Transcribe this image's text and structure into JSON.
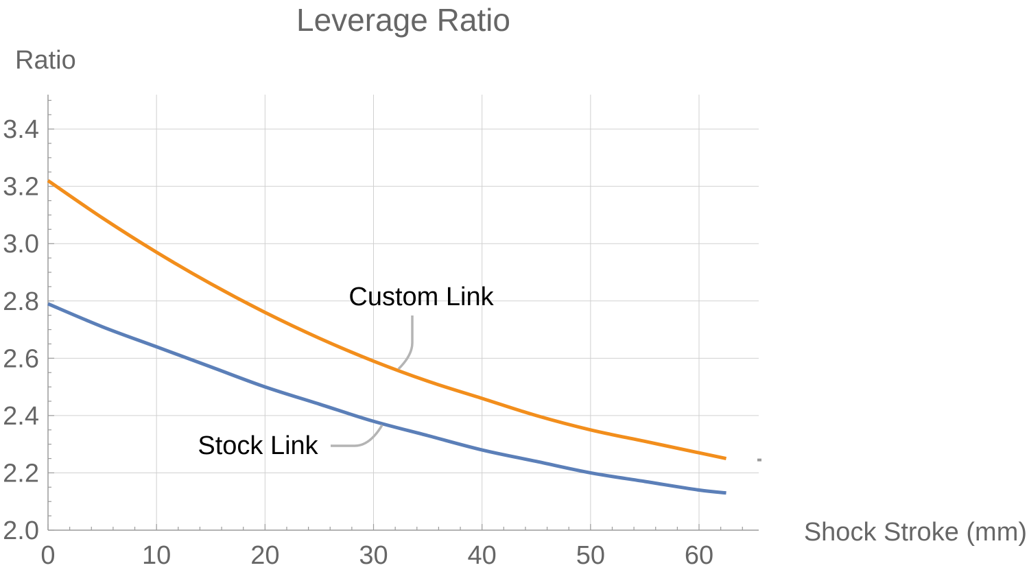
{
  "chart_data": {
    "type": "line",
    "title": "Leverage Ratio",
    "xlabel": "Shock Stroke (mm)",
    "ylabel": "Ratio",
    "xlim": [
      0,
      65.5
    ],
    "ylim": [
      2.0,
      3.52
    ],
    "x_ticks": [
      0,
      10,
      20,
      30,
      40,
      50,
      60
    ],
    "x_tick_labels": [
      "0",
      "10",
      "20",
      "30",
      "40",
      "50",
      "60"
    ],
    "y_ticks": [
      2.0,
      2.2,
      2.4,
      2.6,
      2.8,
      3.0,
      3.2,
      3.4
    ],
    "y_tick_labels": [
      "2.0",
      "2.2",
      "2.4",
      "2.6",
      "2.8",
      "3.0",
      "3.2",
      "3.4"
    ],
    "grid": true,
    "series": [
      {
        "name": "Custom Link",
        "color": "#F28E1C",
        "x": [
          0,
          5,
          10,
          15,
          20,
          25,
          30,
          35,
          40,
          45,
          50,
          55,
          60,
          62.5
        ],
        "y": [
          3.22,
          3.09,
          2.97,
          2.86,
          2.76,
          2.67,
          2.59,
          2.52,
          2.46,
          2.4,
          2.35,
          2.31,
          2.27,
          2.25
        ]
      },
      {
        "name": "Stock Link",
        "color": "#5B7FB8",
        "x": [
          0,
          5,
          10,
          15,
          20,
          25,
          30,
          35,
          40,
          45,
          50,
          55,
          60,
          62.5
        ],
        "y": [
          2.79,
          2.71,
          2.64,
          2.57,
          2.5,
          2.44,
          2.38,
          2.33,
          2.28,
          2.24,
          2.2,
          2.17,
          2.14,
          2.13
        ]
      }
    ],
    "annotations": [
      {
        "text": "Custom Link",
        "series": "Custom Link",
        "at_x": 32.3
      },
      {
        "text": "Stock Link",
        "series": "Stock Link",
        "at_x": 30.8
      }
    ]
  }
}
